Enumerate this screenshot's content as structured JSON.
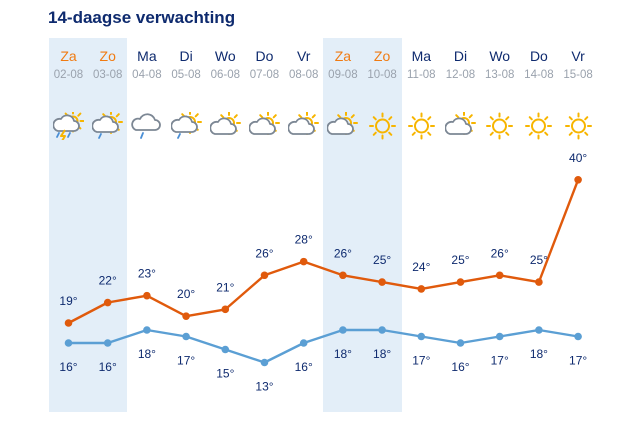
{
  "header": {
    "title": "14-daagse verwachting"
  },
  "colors": {
    "max_line": "#e05a0c",
    "min_line": "#5b9fd4",
    "weekend_band": "#e3eef8",
    "weekend_text": "#f07b12",
    "text": "#0e2a6e",
    "date_text": "#9aa2ad"
  },
  "days": [
    {
      "name": "Za",
      "date": "02-08",
      "weekend": true,
      "icon": "thunder-rain-icon"
    },
    {
      "name": "Zo",
      "date": "03-08",
      "weekend": true,
      "icon": "sun-cloud-rain-icon"
    },
    {
      "name": "Ma",
      "date": "04-08",
      "weekend": false,
      "icon": "cloud-rain-icon"
    },
    {
      "name": "Di",
      "date": "05-08",
      "weekend": false,
      "icon": "sun-cloud-rain-icon"
    },
    {
      "name": "Wo",
      "date": "06-08",
      "weekend": false,
      "icon": "sun-cloud-icon"
    },
    {
      "name": "Do",
      "date": "07-08",
      "weekend": false,
      "icon": "sun-cloud-icon"
    },
    {
      "name": "Vr",
      "date": "08-08",
      "weekend": false,
      "icon": "sun-cloud-icon"
    },
    {
      "name": "Za",
      "date": "09-08",
      "weekend": true,
      "icon": "sun-cloud-icon"
    },
    {
      "name": "Zo",
      "date": "10-08",
      "weekend": true,
      "icon": "sun-icon"
    },
    {
      "name": "Ma",
      "date": "11-08",
      "weekend": false,
      "icon": "sun-icon"
    },
    {
      "name": "Di",
      "date": "12-08",
      "weekend": false,
      "icon": "sun-cloud-icon"
    },
    {
      "name": "Wo",
      "date": "13-08",
      "weekend": false,
      "icon": "sun-icon"
    },
    {
      "name": "Do",
      "date": "14-08",
      "weekend": false,
      "icon": "sun-icon"
    },
    {
      "name": "Vr",
      "date": "15-08",
      "weekend": false,
      "icon": "sun-icon"
    }
  ],
  "chart_data": {
    "type": "line",
    "x": [
      "02-08",
      "03-08",
      "04-08",
      "05-08",
      "06-08",
      "07-08",
      "08-08",
      "09-08",
      "10-08",
      "11-08",
      "12-08",
      "13-08",
      "14-08",
      "15-08"
    ],
    "unit": "°",
    "series": [
      {
        "values": [
          19,
          22,
          23,
          20,
          21,
          26,
          28,
          26,
          25,
          24,
          25,
          26,
          25,
          40
        ]
      },
      {
        "values": [
          16,
          16,
          18,
          17,
          15,
          13,
          16,
          18,
          18,
          17,
          16,
          17,
          18,
          17
        ]
      }
    ]
  }
}
